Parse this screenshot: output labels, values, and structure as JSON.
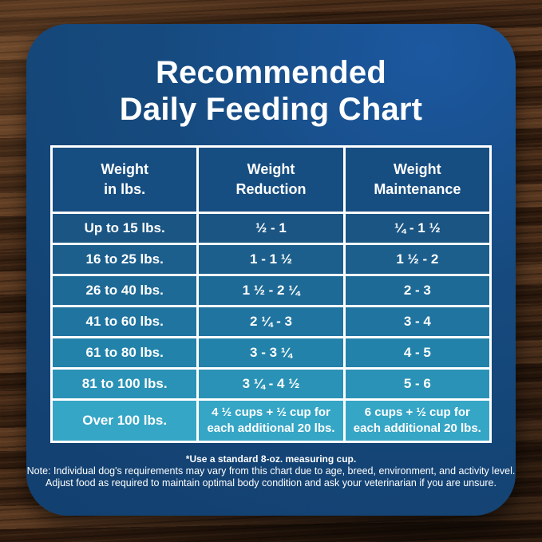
{
  "title": {
    "text": "Recommended\nDaily Feeding Chart"
  },
  "table": {
    "headers": [
      {
        "label": "Weight\nin lbs."
      },
      {
        "label": "Weight\nReduction"
      },
      {
        "label": "Weight\nMaintenance"
      }
    ],
    "rows": [
      {
        "weight": "Up to 15 lbs.",
        "reduction": "½ - 1",
        "maintenance": "¼ - 1 ½",
        "bg": "#1a5583"
      },
      {
        "weight": "16 to 25 lbs.",
        "reduction": "1 - 1 ½",
        "maintenance": "1 ½ - 2",
        "bg": "#1c5f8d"
      },
      {
        "weight": "26 to 40 lbs.",
        "reduction": "1 ½ - 2 ¼",
        "maintenance": "2 - 3",
        "bg": "#1e6a96"
      },
      {
        "weight": "41 to 60 lbs.",
        "reduction": "2 ¼ - 3",
        "maintenance": "3 - 4",
        "bg": "#2074a0"
      },
      {
        "weight": "61 to 80 lbs.",
        "reduction": "3 - 3 ¼",
        "maintenance": "4 - 5",
        "bg": "#2282aa"
      },
      {
        "weight": "81 to 100 lbs.",
        "reduction": "3 ¼ - 4 ½",
        "maintenance": "5 - 6",
        "bg": "#2a92b6"
      },
      {
        "weight": "Over 100 lbs.",
        "reduction": "4 ½ cups  + ½ cup for each additional 20 lbs.",
        "maintenance": "6 cups  + ½ cup for each additional 20 lbs.",
        "bg": "#36a6c6"
      }
    ]
  },
  "footer": {
    "footnote": "*Use a standard 8-oz. measuring cup.",
    "note_line1": "Note: Individual dog's requirements may vary from this chart due to age, breed, environment, and activity level.",
    "note_line2": "Adjust food as required to maintain optimal body condition and ask your veterinarian if you are unsure."
  },
  "colors": {
    "panel-bg": "#164a7e",
    "panel-bg-light": "#1c58a0",
    "header-bg": "#174e81",
    "border": "#ffffff",
    "text": "#ffffff",
    "wood-mid": "#4a2e1b"
  },
  "chart_data": {
    "type": "table",
    "title": "Recommended Daily Feeding Chart",
    "columns": [
      "Weight in lbs.",
      "Weight Reduction",
      "Weight Maintenance"
    ],
    "rows": [
      [
        "Up to 15 lbs.",
        "½ - 1",
        "¼ - 1 ½"
      ],
      [
        "16 to 25 lbs.",
        "1 - 1 ½",
        "1 ½ - 2"
      ],
      [
        "26 to 40 lbs.",
        "1 ½ - 2 ¼",
        "2 - 3"
      ],
      [
        "41 to 60 lbs.",
        "2 ¼ - 3",
        "3 - 4"
      ],
      [
        "61 to 80 lbs.",
        "3 - 3 ¼",
        "4 - 5"
      ],
      [
        "81 to 100 lbs.",
        "3 ¼ - 4 ½",
        "5 - 6"
      ],
      [
        "Over 100 lbs.",
        "4 ½ cups + ½ cup for each additional 20 lbs.",
        "6 cups + ½ cup for each additional 20 lbs."
      ]
    ],
    "notes": [
      "*Use a standard 8-oz. measuring cup.",
      "Note: Individual dog's requirements may vary from this chart due to age, breed, environment, and activity level.",
      "Adjust food as required to maintain optimal body condition and ask your veterinarian if you are unsure."
    ]
  }
}
